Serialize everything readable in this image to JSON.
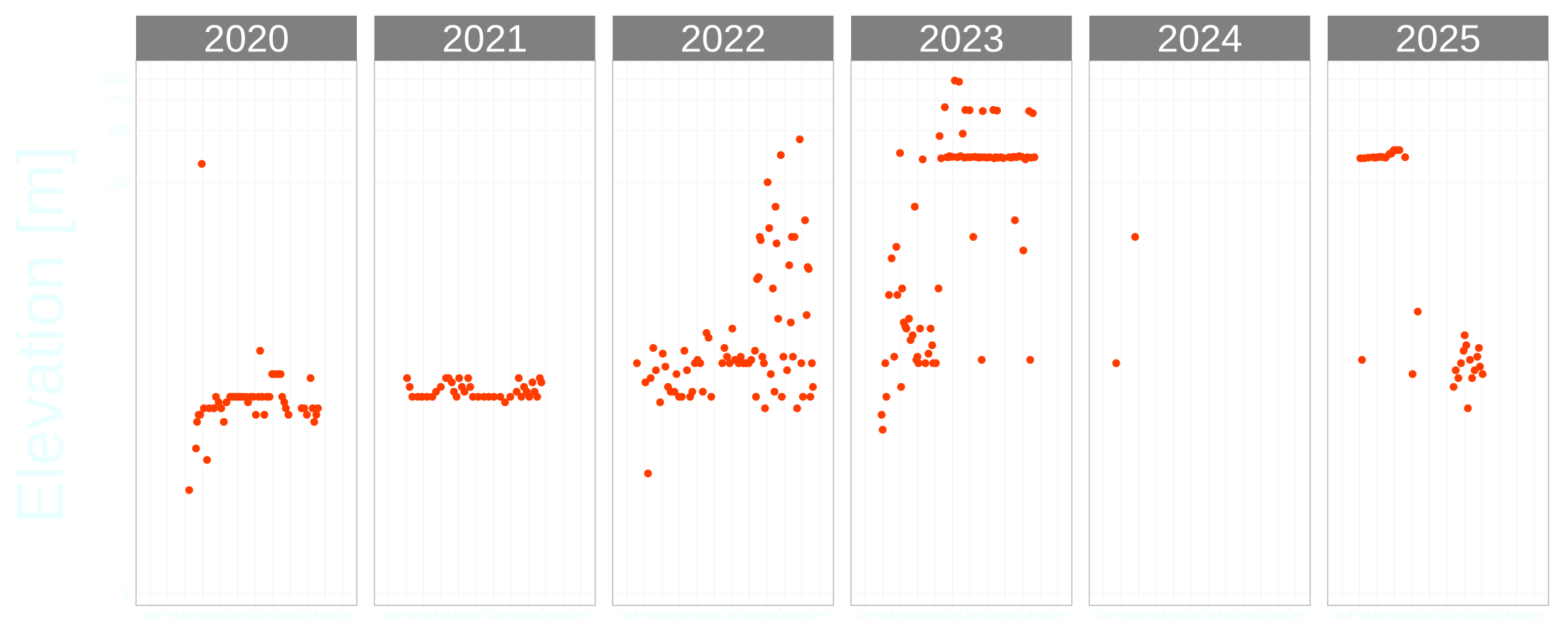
{
  "chart_data": {
    "type": "scatter",
    "ylabel": "Elevation [m]",
    "y_scale": "log10",
    "ylim": [
      1,
      1000
    ],
    "y_ticks": [
      1,
      250,
      500,
      750,
      1000
    ],
    "month_ticks": [
      "Jan",
      "Feb",
      "Mar",
      "Apr",
      "May",
      "Jun",
      "Jul",
      "Aug",
      "Sep",
      "Oct",
      "Nov",
      "Dec"
    ],
    "facets": [
      "2020",
      "2021",
      "2022",
      "2023",
      "2024",
      "2025"
    ],
    "series": [
      {
        "facet": "2020",
        "points": [
          [
            "2020-03-15",
            4
          ],
          [
            "2020-03-28",
            7
          ],
          [
            "2020-03-30",
            10
          ],
          [
            "2020-04-02",
            11
          ],
          [
            "2020-04-05",
            11
          ],
          [
            "2020-04-08",
            320
          ],
          [
            "2020-04-12",
            12
          ],
          [
            "2020-04-18",
            6
          ],
          [
            "2020-04-22",
            12
          ],
          [
            "2020-05-01",
            12
          ],
          [
            "2020-05-05",
            14
          ],
          [
            "2020-05-10",
            13
          ],
          [
            "2020-05-15",
            12
          ],
          [
            "2020-05-20",
            10
          ],
          [
            "2020-05-25",
            13
          ],
          [
            "2020-06-01",
            14
          ],
          [
            "2020-06-05",
            14
          ],
          [
            "2020-06-10",
            14
          ],
          [
            "2020-06-15",
            14
          ],
          [
            "2020-06-20",
            14
          ],
          [
            "2020-06-25",
            14
          ],
          [
            "2020-07-01",
            14
          ],
          [
            "2020-07-05",
            13
          ],
          [
            "2020-07-10",
            14
          ],
          [
            "2020-07-15",
            14
          ],
          [
            "2020-07-20",
            11
          ],
          [
            "2020-07-25",
            14
          ],
          [
            "2020-07-28",
            26
          ],
          [
            "2020-08-01",
            14
          ],
          [
            "2020-08-05",
            11
          ],
          [
            "2020-08-10",
            14
          ],
          [
            "2020-08-15",
            14
          ],
          [
            "2020-08-20",
            19
          ],
          [
            "2020-08-25",
            19
          ],
          [
            "2020-09-01",
            19
          ],
          [
            "2020-09-05",
            19
          ],
          [
            "2020-09-08",
            14
          ],
          [
            "2020-09-12",
            13
          ],
          [
            "2020-09-15",
            12
          ],
          [
            "2020-09-20",
            11
          ],
          [
            "2020-10-15",
            12
          ],
          [
            "2020-10-20",
            12
          ],
          [
            "2020-10-25",
            11
          ],
          [
            "2020-11-01",
            18
          ],
          [
            "2020-11-05",
            12
          ],
          [
            "2020-11-08",
            10
          ],
          [
            "2020-11-12",
            11
          ],
          [
            "2020-11-15",
            12
          ]
        ]
      },
      {
        "facet": "2021",
        "points": [
          [
            "2021-02-05",
            18
          ],
          [
            "2021-02-10",
            16
          ],
          [
            "2021-02-15",
            14
          ],
          [
            "2021-02-25",
            14
          ],
          [
            "2021-03-05",
            14
          ],
          [
            "2021-03-15",
            14
          ],
          [
            "2021-03-25",
            14
          ],
          [
            "2021-04-01",
            15
          ],
          [
            "2021-04-10",
            16
          ],
          [
            "2021-04-20",
            18
          ],
          [
            "2021-04-25",
            18
          ],
          [
            "2021-05-01",
            17
          ],
          [
            "2021-05-05",
            15
          ],
          [
            "2021-05-10",
            14
          ],
          [
            "2021-05-15",
            18
          ],
          [
            "2021-05-20",
            16
          ],
          [
            "2021-05-25",
            15
          ],
          [
            "2021-06-01",
            18
          ],
          [
            "2021-06-05",
            16
          ],
          [
            "2021-06-10",
            14
          ],
          [
            "2021-06-20",
            14
          ],
          [
            "2021-07-01",
            14
          ],
          [
            "2021-07-10",
            14
          ],
          [
            "2021-07-20",
            14
          ],
          [
            "2021-08-01",
            14
          ],
          [
            "2021-08-10",
            13
          ],
          [
            "2021-08-20",
            14
          ],
          [
            "2021-09-01",
            15
          ],
          [
            "2021-09-05",
            18
          ],
          [
            "2021-09-10",
            14
          ],
          [
            "2021-09-15",
            16
          ],
          [
            "2021-09-20",
            15
          ],
          [
            "2021-09-25",
            14
          ],
          [
            "2021-10-01",
            17
          ],
          [
            "2021-10-05",
            15
          ],
          [
            "2021-10-10",
            14
          ],
          [
            "2021-10-15",
            18
          ],
          [
            "2021-10-18",
            17
          ]
        ]
      },
      {
        "facet": "2022",
        "points": [
          [
            "2022-01-20",
            22
          ],
          [
            "2022-02-05",
            17
          ],
          [
            "2022-02-10",
            5
          ],
          [
            "2022-02-15",
            18
          ],
          [
            "2022-02-20",
            27
          ],
          [
            "2022-02-25",
            20
          ],
          [
            "2022-03-05",
            13
          ],
          [
            "2022-03-10",
            25
          ],
          [
            "2022-03-15",
            21
          ],
          [
            "2022-03-20",
            16
          ],
          [
            "2022-03-25",
            15
          ],
          [
            "2022-04-01",
            15
          ],
          [
            "2022-04-05",
            19
          ],
          [
            "2022-04-10",
            14
          ],
          [
            "2022-04-15",
            14
          ],
          [
            "2022-04-20",
            26
          ],
          [
            "2022-04-25",
            20
          ],
          [
            "2022-05-01",
            14
          ],
          [
            "2022-05-05",
            15
          ],
          [
            "2022-05-10",
            22
          ],
          [
            "2022-05-15",
            23
          ],
          [
            "2022-05-20",
            22
          ],
          [
            "2022-05-25",
            15
          ],
          [
            "2022-06-01",
            33
          ],
          [
            "2022-06-05",
            31
          ],
          [
            "2022-06-10",
            14
          ],
          [
            "2022-07-01",
            22
          ],
          [
            "2022-07-05",
            27
          ],
          [
            "2022-07-10",
            24
          ],
          [
            "2022-07-15",
            22
          ],
          [
            "2022-07-20",
            35
          ],
          [
            "2022-07-25",
            23
          ],
          [
            "2022-08-01",
            22
          ],
          [
            "2022-08-05",
            24
          ],
          [
            "2022-08-10",
            22
          ],
          [
            "2022-08-15",
            22
          ],
          [
            "2022-08-20",
            22
          ],
          [
            "2022-08-25",
            23
          ],
          [
            "2022-09-01",
            26
          ],
          [
            "2022-09-03",
            14
          ],
          [
            "2022-09-05",
            68
          ],
          [
            "2022-09-08",
            70
          ],
          [
            "2022-09-10",
            120
          ],
          [
            "2022-09-12",
            115
          ],
          [
            "2022-09-15",
            24
          ],
          [
            "2022-09-18",
            22
          ],
          [
            "2022-09-20",
            12
          ],
          [
            "2022-09-25",
            250
          ],
          [
            "2022-09-28",
            135
          ],
          [
            "2022-10-01",
            19
          ],
          [
            "2022-10-05",
            60
          ],
          [
            "2022-10-08",
            15
          ],
          [
            "2022-10-10",
            180
          ],
          [
            "2022-10-12",
            110
          ],
          [
            "2022-10-15",
            40
          ],
          [
            "2022-10-20",
            360
          ],
          [
            "2022-10-22",
            14
          ],
          [
            "2022-10-25",
            24
          ],
          [
            "2022-11-01",
            20
          ],
          [
            "2022-11-05",
            82
          ],
          [
            "2022-11-08",
            38
          ],
          [
            "2022-11-10",
            120
          ],
          [
            "2022-11-12",
            24
          ],
          [
            "2022-11-15",
            120
          ],
          [
            "2022-11-20",
            12
          ],
          [
            "2022-11-25",
            445
          ],
          [
            "2022-11-28",
            22
          ],
          [
            "2022-12-01",
            14
          ],
          [
            "2022-12-05",
            150
          ],
          [
            "2022-12-08",
            42
          ],
          [
            "2022-12-10",
            80
          ],
          [
            "2022-12-12",
            78
          ],
          [
            "2022-12-15",
            14
          ],
          [
            "2022-12-18",
            22
          ],
          [
            "2022-12-20",
            16
          ]
        ]
      },
      {
        "facet": "2023",
        "points": [
          [
            "2023-02-01",
            11
          ],
          [
            "2023-02-03",
            9
          ],
          [
            "2023-02-08",
            22
          ],
          [
            "2023-02-10",
            14
          ],
          [
            "2023-02-15",
            55
          ],
          [
            "2023-02-20",
            90
          ],
          [
            "2023-02-25",
            24
          ],
          [
            "2023-03-01",
            105
          ],
          [
            "2023-03-03",
            55
          ],
          [
            "2023-03-08",
            370
          ],
          [
            "2023-03-10",
            16
          ],
          [
            "2023-03-12",
            60
          ],
          [
            "2023-03-15",
            38
          ],
          [
            "2023-03-18",
            36
          ],
          [
            "2023-03-20",
            35
          ],
          [
            "2023-03-25",
            40
          ],
          [
            "2023-03-28",
            30
          ],
          [
            "2023-04-01",
            32
          ],
          [
            "2023-04-05",
            180
          ],
          [
            "2023-04-08",
            23
          ],
          [
            "2023-04-10",
            24
          ],
          [
            "2023-04-12",
            22
          ],
          [
            "2023-04-15",
            35
          ],
          [
            "2023-04-20",
            340
          ],
          [
            "2023-04-25",
            22
          ],
          [
            "2023-05-01",
            25
          ],
          [
            "2023-05-05",
            35
          ],
          [
            "2023-05-08",
            28
          ],
          [
            "2023-05-10",
            22
          ],
          [
            "2023-05-15",
            22
          ],
          [
            "2023-05-20",
            60
          ],
          [
            "2023-05-22",
            465
          ],
          [
            "2023-05-25",
            345
          ],
          [
            "2023-06-01",
            685
          ],
          [
            "2023-06-05",
            350
          ],
          [
            "2023-06-08",
            350
          ],
          [
            "2023-06-10",
            355
          ],
          [
            "2023-06-15",
            352
          ],
          [
            "2023-06-20",
            980
          ],
          [
            "2023-06-25",
            350
          ],
          [
            "2023-06-28",
            965
          ],
          [
            "2023-07-01",
            355
          ],
          [
            "2023-07-05",
            480
          ],
          [
            "2023-07-08",
            348
          ],
          [
            "2023-07-10",
            660
          ],
          [
            "2023-07-15",
            350
          ],
          [
            "2023-07-18",
            658
          ],
          [
            "2023-07-20",
            350
          ],
          [
            "2023-07-25",
            120
          ],
          [
            "2023-07-28",
            352
          ],
          [
            "2023-08-01",
            350
          ],
          [
            "2023-08-05",
            348
          ],
          [
            "2023-08-08",
            350
          ],
          [
            "2023-08-10",
            23
          ],
          [
            "2023-08-12",
            650
          ],
          [
            "2023-08-15",
            350
          ],
          [
            "2023-08-20",
            348
          ],
          [
            "2023-08-25",
            350
          ],
          [
            "2023-09-01",
            660
          ],
          [
            "2023-09-03",
            345
          ],
          [
            "2023-09-05",
            350
          ],
          [
            "2023-09-08",
            655
          ],
          [
            "2023-09-10",
            348
          ],
          [
            "2023-09-15",
            350
          ],
          [
            "2023-09-20",
            346
          ],
          [
            "2023-10-01",
            350
          ],
          [
            "2023-10-05",
            348
          ],
          [
            "2023-10-10",
            352
          ],
          [
            "2023-10-12",
            150
          ],
          [
            "2023-10-15",
            350
          ],
          [
            "2023-10-20",
            355
          ],
          [
            "2023-10-25",
            352
          ],
          [
            "2023-10-28",
            100
          ],
          [
            "2023-11-01",
            340
          ],
          [
            "2023-11-05",
            350
          ],
          [
            "2023-11-08",
            650
          ],
          [
            "2023-11-10",
            23
          ],
          [
            "2023-11-12",
            348
          ],
          [
            "2023-11-15",
            632
          ],
          [
            "2023-11-18",
            350
          ]
        ]
      },
      {
        "facet": "2024",
        "points": [
          [
            "2024-01-25",
            22
          ],
          [
            "2024-03-01",
            120
          ]
        ]
      },
      {
        "facet": "2025",
        "points": [
          [
            "2025-02-05",
            345
          ],
          [
            "2025-02-08",
            23
          ],
          [
            "2025-02-12",
            345
          ],
          [
            "2025-02-20",
            348
          ],
          [
            "2025-03-01",
            350
          ],
          [
            "2025-03-05",
            348
          ],
          [
            "2025-03-10",
            350
          ],
          [
            "2025-03-15",
            352
          ],
          [
            "2025-03-20",
            350
          ],
          [
            "2025-03-25",
            348
          ],
          [
            "2025-04-01",
            365
          ],
          [
            "2025-04-05",
            368
          ],
          [
            "2025-04-08",
            380
          ],
          [
            "2025-04-10",
            385
          ],
          [
            "2025-04-15",
            385
          ],
          [
            "2025-04-20",
            385
          ],
          [
            "2025-05-01",
            350
          ],
          [
            "2025-05-15",
            19
          ],
          [
            "2025-05-25",
            44
          ],
          [
            "2025-08-01",
            16
          ],
          [
            "2025-08-05",
            20
          ],
          [
            "2025-08-10",
            18
          ],
          [
            "2025-08-15",
            22
          ],
          [
            "2025-08-20",
            26
          ],
          [
            "2025-08-22",
            32
          ],
          [
            "2025-08-25",
            28
          ],
          [
            "2025-08-28",
            12
          ],
          [
            "2025-09-01",
            23
          ],
          [
            "2025-09-05",
            18
          ],
          [
            "2025-09-10",
            20
          ],
          [
            "2025-09-15",
            24
          ],
          [
            "2025-09-18",
            27
          ],
          [
            "2025-09-20",
            21
          ],
          [
            "2025-09-25",
            19
          ]
        ]
      }
    ],
    "colors": {
      "point": "#ff3c00",
      "strip_bg": "#808080",
      "strip_text": "#ffffff",
      "panel_border": "#b8b8b8",
      "grid": "#f2f2f2",
      "axis_text": "#eaffff"
    }
  }
}
